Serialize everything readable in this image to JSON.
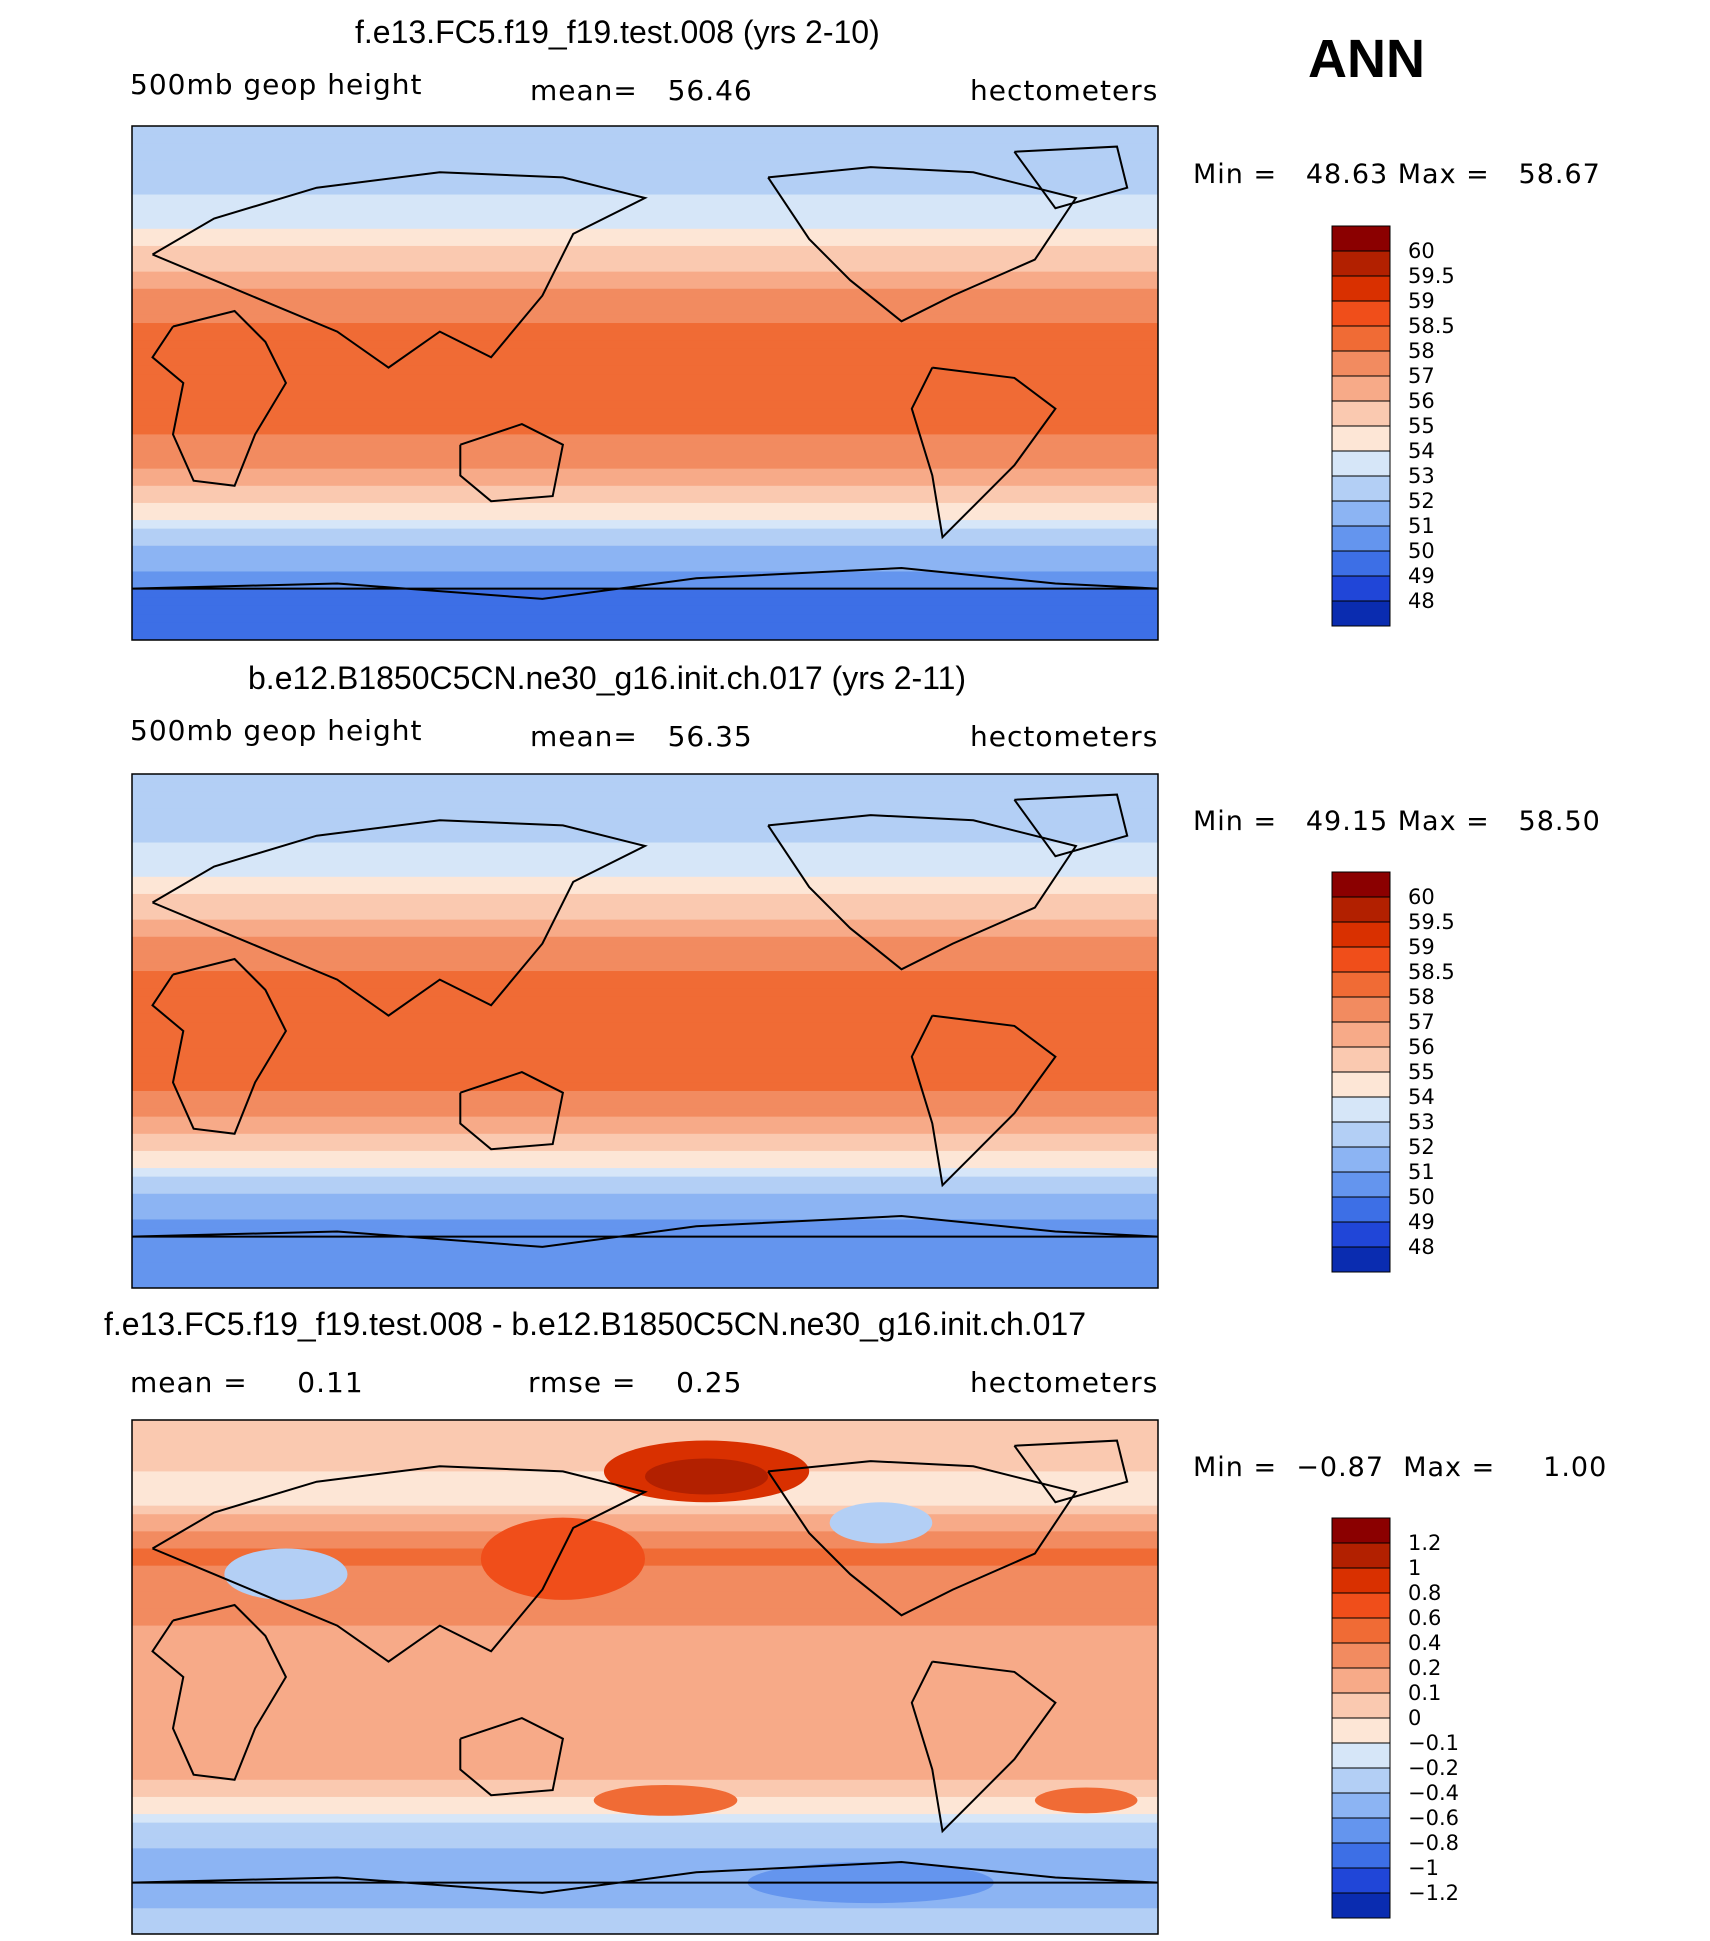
{
  "season": "ANN",
  "panels": [
    {
      "title": "f.e13.FC5.f19_f19.test.008 (yrs 2-10)",
      "left_label": "500mb  geop  height",
      "center_label": "mean=",
      "center_value": "56.46",
      "right_label": "hectometers",
      "min_label": "Min  =",
      "min_value": "48.63",
      "max_label": "Max  =",
      "max_value": "58.67"
    },
    {
      "title": "b.e12.B1850C5CN.ne30_g16.init.ch.017 (yrs 2-11)",
      "left_label": "500mb  geop  height",
      "center_label": "mean=",
      "center_value": "56.35",
      "right_label": "hectometers",
      "min_label": "Min  =",
      "min_value": "49.15",
      "max_label": "Max  =",
      "max_value": "58.50"
    },
    {
      "title": "f.e13.FC5.f19_f19.test.008 - b.e12.B1850C5CN.ne30_g16.init.ch.017",
      "left_label": "mean  =",
      "left_value": "0.11",
      "center_label": "rmse  =",
      "center_value": "0.25",
      "right_label": "hectometers",
      "min_label": "Min  =",
      "min_value": "−0.87",
      "max_label": "Max  =",
      "max_value": "1.00"
    }
  ],
  "chart_data": [
    {
      "type": "heatmap",
      "title": "f.e13.FC5.f19_f19.test.008 (yrs 2-10)",
      "variable": "500mb geop height",
      "units": "hectometers",
      "mean": 56.46,
      "min": 48.63,
      "max": 58.67,
      "colorbar_levels": [
        "60",
        "59.5",
        "59",
        "58.5",
        "58",
        "57",
        "56",
        "55",
        "54",
        "53",
        "52",
        "51",
        "50",
        "49",
        "48"
      ],
      "colorbar_colors": [
        "#8b0000",
        "#b22000",
        "#d93000",
        "#f04e1a",
        "#f06b35",
        "#f28b60",
        "#f7aa88",
        "#fac9b0",
        "#fde6d6",
        "#d6e6f8",
        "#b3cff5",
        "#8cb4f3",
        "#6495ee",
        "#3d6fe6",
        "#2046d8",
        "#0a2cb0"
      ],
      "description_bands": [
        {
          "lat_band": "90N-60N",
          "value": 52.5
        },
        {
          "lat_band": "60N-40N",
          "value": 55.0
        },
        {
          "lat_band": "40N-20N",
          "value": 58.0
        },
        {
          "lat_band": "20N-20S",
          "value": 58.3
        },
        {
          "lat_band": "20S-40S",
          "value": 57.0
        },
        {
          "lat_band": "40S-60S",
          "value": 53.0
        },
        {
          "lat_band": "60S-90S",
          "value": 50.0
        }
      ]
    },
    {
      "type": "heatmap",
      "title": "b.e12.B1850C5CN.ne30_g16.init.ch.017 (yrs 2-11)",
      "variable": "500mb geop height",
      "units": "hectometers",
      "mean": 56.35,
      "min": 49.15,
      "max": 58.5,
      "colorbar_levels": [
        "60",
        "59.5",
        "59",
        "58.5",
        "58",
        "57",
        "56",
        "55",
        "54",
        "53",
        "52",
        "51",
        "50",
        "49",
        "48"
      ],
      "colorbar_colors": [
        "#8b0000",
        "#b22000",
        "#d93000",
        "#f04e1a",
        "#f06b35",
        "#f28b60",
        "#f7aa88",
        "#fac9b0",
        "#fde6d6",
        "#d6e6f8",
        "#b3cff5",
        "#8cb4f3",
        "#6495ee",
        "#3d6fe6",
        "#2046d8",
        "#0a2cb0"
      ],
      "description_bands": [
        {
          "lat_band": "90N-60N",
          "value": 53.0
        },
        {
          "lat_band": "60N-40N",
          "value": 55.0
        },
        {
          "lat_band": "40N-20N",
          "value": 57.5
        },
        {
          "lat_band": "20N-20S",
          "value": 58.2
        },
        {
          "lat_band": "20S-40S",
          "value": 57.0
        },
        {
          "lat_band": "40S-60S",
          "value": 53.0
        },
        {
          "lat_band": "60S-90S",
          "value": 50.5
        }
      ]
    },
    {
      "type": "heatmap",
      "title": "f.e13.FC5.f19_f19.test.008 - b.e12.B1850C5CN.ne30_g16.init.ch.017",
      "variable": "difference",
      "units": "hectometers",
      "mean": 0.11,
      "rmse": 0.25,
      "min": -0.87,
      "max": 1.0,
      "colorbar_levels": [
        "1.2",
        "1",
        "0.8",
        "0.6",
        "0.4",
        "0.2",
        "0.1",
        "0",
        "−0.1",
        "−0.2",
        "−0.4",
        "−0.6",
        "−0.8",
        "−1",
        "−1.2"
      ],
      "colorbar_colors": [
        "#8b0000",
        "#b22000",
        "#d93000",
        "#f04e1a",
        "#f06b35",
        "#f28b60",
        "#f7aa88",
        "#fac9b0",
        "#fde6d6",
        "#d6e6f8",
        "#b3cff5",
        "#8cb4f3",
        "#6495ee",
        "#3d6fe6",
        "#2046d8",
        "#0a2cb0"
      ],
      "description_bands": [
        {
          "lat_band": "90N-60N",
          "value": 0.05
        },
        {
          "lat_band": "60N-40N",
          "value": 0.4
        },
        {
          "lat_band": "40N-20N",
          "value": 0.3
        },
        {
          "lat_band": "20N-20S",
          "value": 0.15
        },
        {
          "lat_band": "20S-40S",
          "value": 0.2
        },
        {
          "lat_band": "40S-60S",
          "value": -0.3
        },
        {
          "lat_band": "60S-90S",
          "value": -0.5
        }
      ]
    }
  ]
}
